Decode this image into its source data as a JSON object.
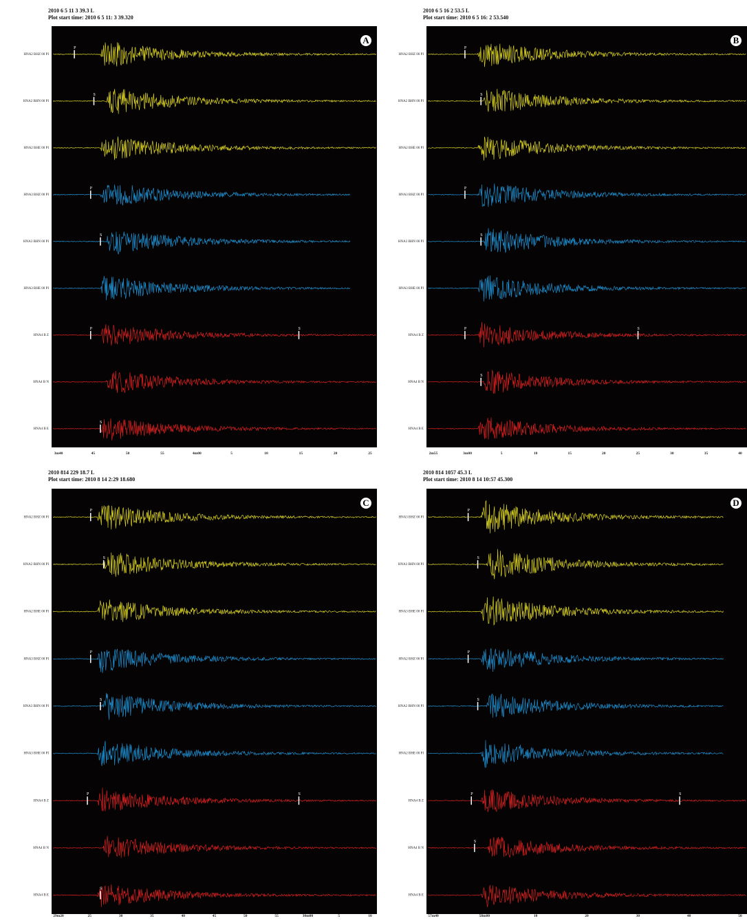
{
  "panels": [
    {
      "letter": "A",
      "header": {
        "event": "2010 6 5 11 3 39.3 L",
        "start_time": "Plot start time: 2010  6  5  11: 3  39.320"
      },
      "traces": [
        {
          "label": "HNA2 BHZ 00 PI",
          "picks": [
            "P"
          ]
        },
        {
          "label": "HNA2 BHN 00 PI",
          "picks": [
            "S"
          ]
        },
        {
          "label": "HNA2 BHE 00 PI",
          "picks": []
        },
        {
          "label": "HNA3 BHZ 00 PI",
          "picks": [
            "P"
          ]
        },
        {
          "label": "HNA3 BHN 00 PI",
          "picks": [
            "S"
          ]
        },
        {
          "label": "HNA3 BHE 00 PI",
          "picks": []
        },
        {
          "label": "HNA4 B Z",
          "picks": [
            "P",
            "S"
          ]
        },
        {
          "label": "HNA4 B N",
          "picks": []
        },
        {
          "label": "HNA4 B E",
          "picks": [
            "S"
          ]
        }
      ],
      "x_axis_labels": [
        "3m40",
        "45",
        "50",
        "55",
        "4m00",
        "5",
        "10",
        "15",
        "20",
        "25"
      ]
    },
    {
      "letter": "B",
      "header": {
        "event": "2010 6 5 16 2 53.5 L",
        "start_time": "Plot start time: 2010  6  5  16: 2  53.540"
      },
      "traces": [
        {
          "label": "HNA2 BHZ 00 PI",
          "picks": [
            "P"
          ]
        },
        {
          "label": "HNA2 BHN 00 PI",
          "picks": [
            "S"
          ]
        },
        {
          "label": "HNA2 BHE 00 PI",
          "picks": []
        },
        {
          "label": "HNA3 BHZ 00 PI",
          "picks": [
            "P"
          ]
        },
        {
          "label": "HNA3 BHN 00 PI",
          "picks": [
            "S"
          ]
        },
        {
          "label": "HNA3 BHE 00 PI",
          "picks": []
        },
        {
          "label": "HNA4 B Z",
          "picks": [
            "P",
            "S"
          ]
        },
        {
          "label": "HNA4 B N",
          "picks": [
            "S"
          ]
        },
        {
          "label": "HNA4 B E",
          "picks": []
        }
      ],
      "x_axis_labels": [
        "2m55",
        "3m00",
        "5",
        "10",
        "15",
        "20",
        "25",
        "30",
        "35",
        "40"
      ]
    },
    {
      "letter": "C",
      "header": {
        "event": "2010 814 229 18.7 L",
        "start_time": "Plot start time: 2010  8 14   2:29  18.680"
      },
      "traces": [
        {
          "label": "HNA2 BHZ 00 PI",
          "picks": [
            "P"
          ]
        },
        {
          "label": "HNA2 BHN 00 PI",
          "picks": [
            "S"
          ]
        },
        {
          "label": "HNA2 BHE 00 PI",
          "picks": []
        },
        {
          "label": "HNA3 BHZ 00 PI",
          "picks": [
            "P"
          ]
        },
        {
          "label": "HNA3 BHN 00 PI",
          "picks": [
            "S"
          ]
        },
        {
          "label": "HNA3 BHE 00 PI",
          "picks": []
        },
        {
          "label": "HNA4 B Z",
          "picks": [
            "P",
            "S"
          ]
        },
        {
          "label": "HNA4 B N",
          "picks": []
        },
        {
          "label": "HNA4 B E",
          "picks": [
            "S"
          ]
        }
      ],
      "x_axis_labels": [
        "29m20",
        "25",
        "30",
        "35",
        "40",
        "45",
        "50",
        "55",
        "30m00",
        "5",
        "10"
      ]
    },
    {
      "letter": "D",
      "header": {
        "event": "2010 814 1057 45.3 L",
        "start_time": "Plot start time: 2010  8 14   10:57  45.300"
      },
      "traces": [
        {
          "label": "HNA3 BHZ 00 PI",
          "picks": [
            "P"
          ]
        },
        {
          "label": "HNA3 BHN 00 PI",
          "picks": [
            "S"
          ]
        },
        {
          "label": "HNA3 BHE 00 PI",
          "picks": []
        },
        {
          "label": "HNA2 BHZ 00 PI",
          "picks": [
            "P"
          ]
        },
        {
          "label": "HNA2 BHN 00 PI",
          "picks": [
            "S"
          ]
        },
        {
          "label": "HNA2 BHE 00 PI",
          "picks": []
        },
        {
          "label": "HNA4 B Z",
          "picks": [
            "P",
            "S"
          ]
        },
        {
          "label": "HNA4 B N",
          "picks": [
            "S"
          ]
        },
        {
          "label": "HNA4 B E",
          "picks": []
        }
      ],
      "x_axis_labels": [
        "57m40",
        "58m00",
        "10",
        "20",
        "30",
        "40",
        "50"
      ]
    }
  ]
}
